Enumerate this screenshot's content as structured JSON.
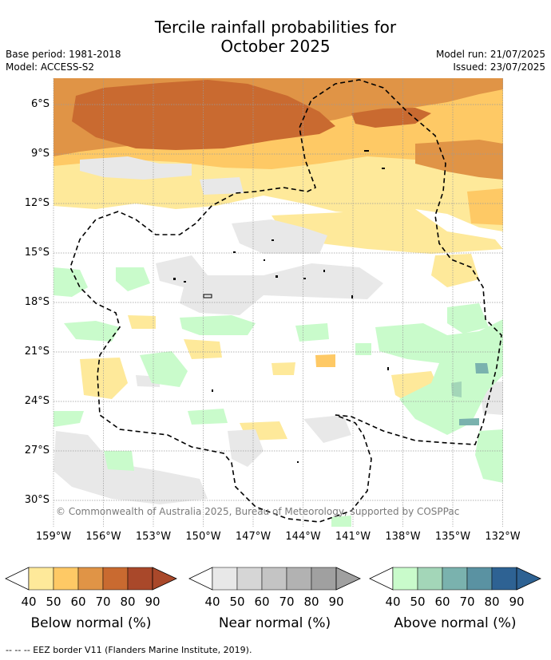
{
  "title_line1": "Tercile rainfall probabilities for",
  "title_line2": "October 2025",
  "meta_left": {
    "base_period": "Base period: 1981-2018",
    "model": "Model: ACCESS-S2"
  },
  "meta_right": {
    "model_run": "Model run: 21/07/2025",
    "issued": "Issued: 23/07/2025"
  },
  "map": {
    "lat_labels": [
      "6°S",
      "9°S",
      "12°S",
      "15°S",
      "18°S",
      "21°S",
      "24°S",
      "27°S",
      "30°S"
    ],
    "lon_labels": [
      "159°W",
      "156°W",
      "153°W",
      "150°W",
      "147°W",
      "144°W",
      "141°W",
      "138°W",
      "135°W",
      "132°W"
    ],
    "copyright": "© Commonwealth of Australia 2025, Bureau of Meteorology, supported by COSPPac",
    "gridlines": true
  },
  "legend": {
    "below": {
      "title": "Below normal (%)",
      "ticks": [
        "40",
        "50",
        "60",
        "70",
        "80",
        "90"
      ],
      "colors": [
        "#fee99a",
        "#fec965",
        "#e09446",
        "#c96a30",
        "#a9482a"
      ]
    },
    "near": {
      "title": "Near normal (%)",
      "ticks": [
        "40",
        "50",
        "60",
        "70",
        "80",
        "90"
      ],
      "colors": [
        "#e8e8e8",
        "#d6d6d6",
        "#c4c4c4",
        "#b2b2b2",
        "#a0a0a0"
      ]
    },
    "above": {
      "title": "Above normal (%)",
      "ticks": [
        "40",
        "50",
        "60",
        "70",
        "80",
        "90"
      ],
      "colors": [
        "#c9fbcb",
        "#a3d6b8",
        "#7ab2ae",
        "#5a92a2",
        "#2e6293"
      ]
    }
  },
  "footnote": "--  --  -- EEZ border V11 (Flanders Marine Institute, 2019)."
}
